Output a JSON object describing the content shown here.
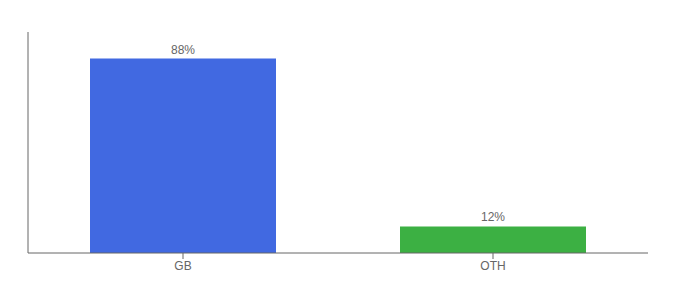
{
  "chart_data": {
    "type": "bar",
    "categories": [
      "GB",
      "OTH"
    ],
    "values": [
      88,
      12
    ],
    "value_labels": [
      "88%",
      "12%"
    ],
    "colors": [
      "#4169e1",
      "#3cb043"
    ],
    "ylim": [
      0,
      100
    ],
    "data_labels": true,
    "tick_labels": "x"
  }
}
